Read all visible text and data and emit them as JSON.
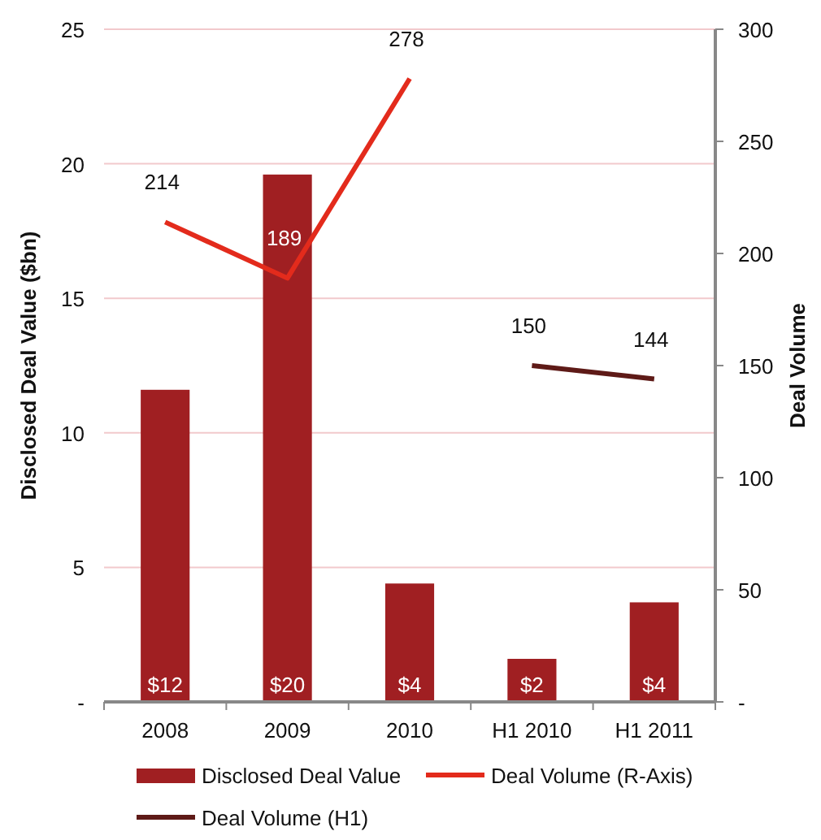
{
  "chart_data": {
    "type": "bar",
    "categories": [
      "2008",
      "2009",
      "2010",
      "H1 2010",
      "H1 2011"
    ],
    "ylabel": "Disclosed Deal Value ($bn)",
    "y2label": "Deal Volume",
    "ylim": [
      0,
      25
    ],
    "yticks": [
      {
        "value": 0,
        "label": "-"
      },
      5,
      10,
      15,
      20,
      25
    ],
    "y2lim": [
      0,
      300
    ],
    "y2ticks": [
      {
        "value": 0,
        "label": "-"
      },
      50,
      100,
      150,
      200,
      250,
      300
    ],
    "grid": "y",
    "legend": "bottom",
    "series": [
      {
        "name": "Disclosed Deal Value",
        "color": "#a01f22",
        "values": [
          11.6,
          19.6,
          4.4,
          1.6,
          3.7
        ],
        "value_labels": [
          "$12",
          "$20",
          "$4",
          "$2",
          "$4"
        ]
      },
      {
        "name": "Deal Volume (R-Axis)",
        "type": "line",
        "axis": "y2",
        "color": "#e32b1c",
        "values": [
          214,
          189,
          278,
          null,
          null
        ],
        "value_labels": [
          "214",
          "189",
          "278",
          null,
          null
        ]
      },
      {
        "name": "Deal Volume (H1)",
        "type": "line",
        "axis": "y2",
        "color": "#5e1a17",
        "values": [
          null,
          null,
          null,
          150,
          144
        ],
        "value_labels": [
          null,
          null,
          null,
          "150",
          "144"
        ]
      }
    ]
  }
}
